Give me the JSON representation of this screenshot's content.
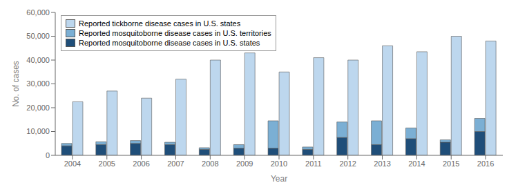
{
  "chart_data": {
    "type": "bar",
    "xlabel": "Year",
    "ylabel": "No. of cases",
    "categories": [
      "2004",
      "2005",
      "2006",
      "2007",
      "2008",
      "2009",
      "2010",
      "2011",
      "2012",
      "2013",
      "2014",
      "2015",
      "2016"
    ],
    "series": [
      {
        "name": "Reported tickborne disease cases in U.S. states",
        "color": "#BDD7EE",
        "values": [
          22500,
          27000,
          24000,
          32000,
          40000,
          43000,
          35000,
          41000,
          40000,
          46000,
          43500,
          50000,
          48000
        ]
      },
      {
        "name": "Reported mosquitoborne disease cases in U.S. territories",
        "color": "#7BAFD4",
        "stacked": true,
        "values": [
          1000,
          1200,
          1200,
          1000,
          700,
          1500,
          11500,
          1000,
          6500,
          10000,
          4500,
          1000,
          5500
        ]
      },
      {
        "name": "Reported mosquitoborne disease cases in U.S. states",
        "color": "#1F4E79",
        "stacked": true,
        "values": [
          4000,
          4500,
          5000,
          4500,
          2500,
          3000,
          3000,
          2500,
          7500,
          4500,
          7000,
          5500,
          10000
        ]
      }
    ],
    "ylim": [
      0,
      60000
    ],
    "yticks": [
      0,
      {
        "value": 10000,
        "label": "10,000"
      },
      {
        "value": 20000,
        "label": "20,000"
      },
      {
        "value": 30000,
        "label": "30,000"
      },
      {
        "value": 40000,
        "label": "40,000"
      },
      {
        "value": 50000,
        "label": "50,000"
      },
      {
        "value": 60000,
        "label": "60,000"
      }
    ],
    "legend": "upper left",
    "grid": false
  }
}
